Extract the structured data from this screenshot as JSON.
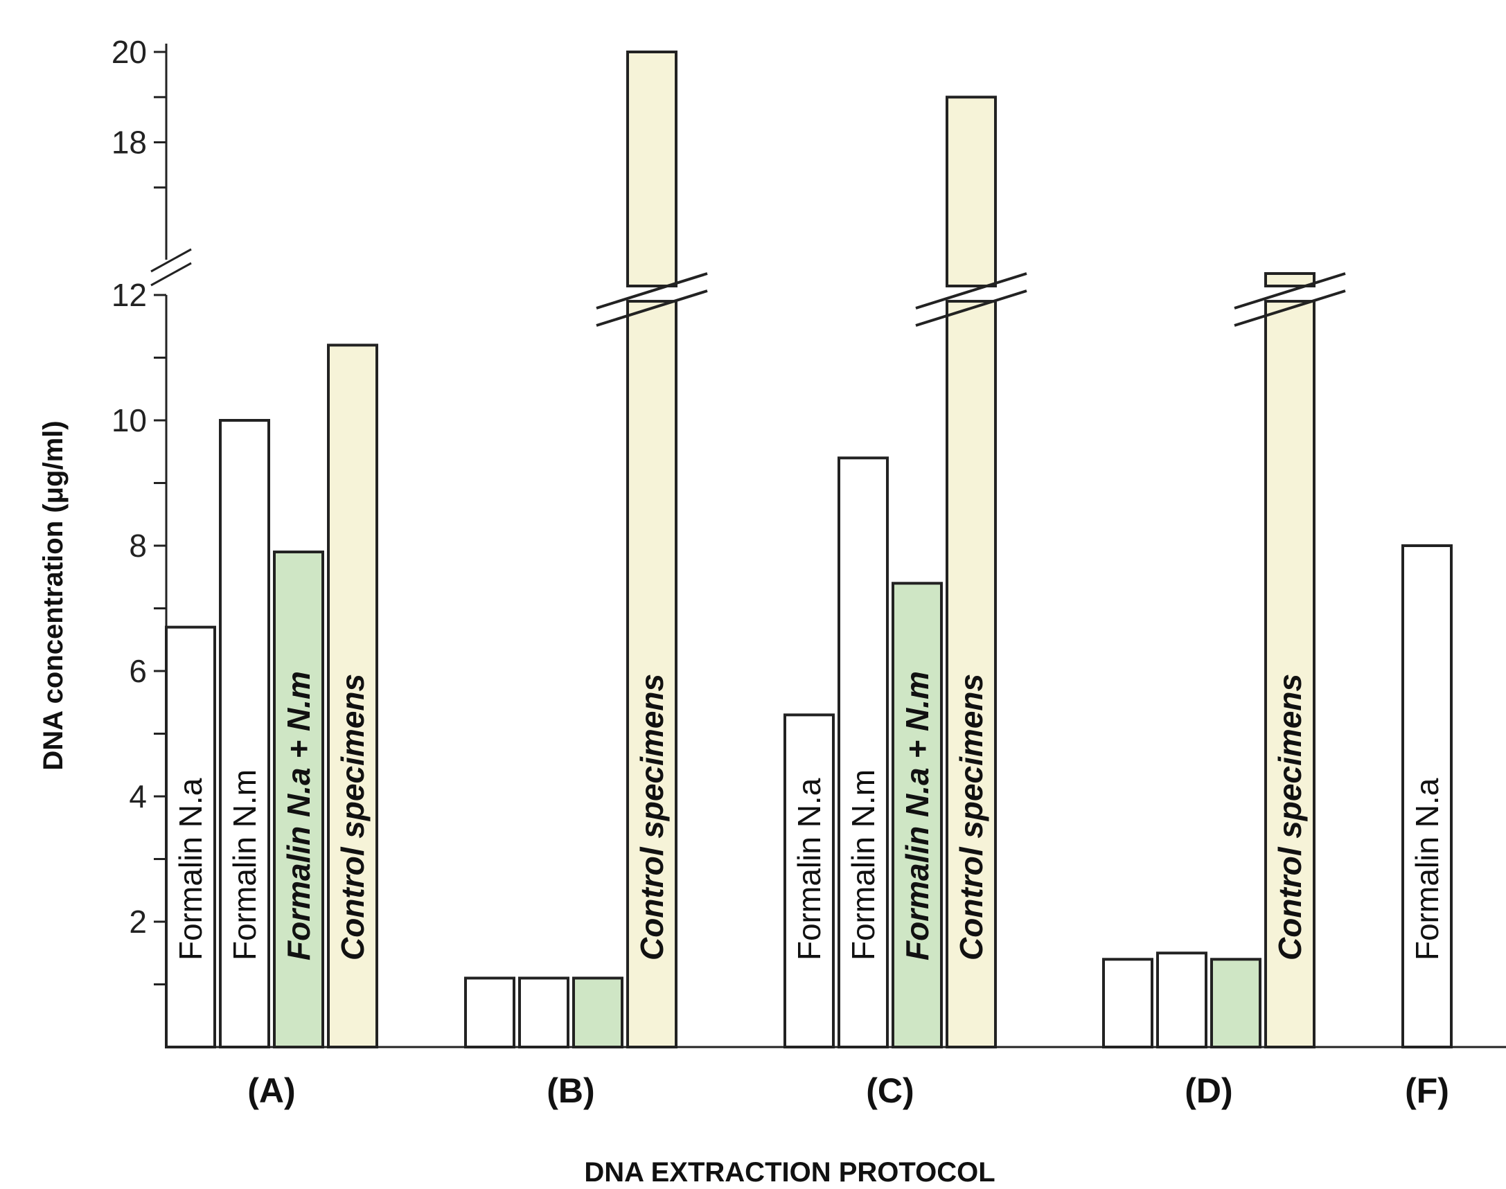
{
  "chart_data": {
    "type": "bar",
    "title": "",
    "xlabel": "DNA EXTRACTION PROTOCOL",
    "ylabel": "DNA concentration (μg/ml)",
    "ylim": [
      0,
      20
    ],
    "y_axis_break": [
      12,
      16
    ],
    "y_ticks": [
      "2",
      "4",
      "6",
      "8",
      "10",
      "12",
      "18",
      "20"
    ],
    "grid": false,
    "legend": "none",
    "colors": {
      "formalin": "#ffffff",
      "combined": "#cfe6c5",
      "control": "#f6f3d8",
      "edge": "#222222"
    },
    "groups": [
      {
        "label": "(A)",
        "bars": [
          {
            "kind": "formalin",
            "text": "Formalin N.a",
            "value": 6.7
          },
          {
            "kind": "formalin",
            "text": "Formalin N.m",
            "value": 10.0
          },
          {
            "kind": "combined",
            "text": "Formalin N.a + N.m",
            "value": 7.9
          },
          {
            "kind": "control",
            "text": "Control specimens",
            "value": 11.2
          }
        ]
      },
      {
        "label": "(B)",
        "bars": [
          {
            "kind": "formalin",
            "text": "",
            "value": 1.1
          },
          {
            "kind": "formalin",
            "text": "",
            "value": 1.1
          },
          {
            "kind": "combined",
            "text": "",
            "value": 1.1
          },
          {
            "kind": "control",
            "text": "Control specimens",
            "value": 20.0
          }
        ]
      },
      {
        "label": "(C)",
        "bars": [
          {
            "kind": "formalin",
            "text": "Formalin N.a",
            "value": 5.3
          },
          {
            "kind": "formalin",
            "text": "Formalin N.m",
            "value": 9.4
          },
          {
            "kind": "combined",
            "text": "Formalin N.a + N.m",
            "value": 7.4
          },
          {
            "kind": "control",
            "text": "Control specimens",
            "value": 19.0
          }
        ]
      },
      {
        "label": "(D)",
        "bars": [
          {
            "kind": "formalin",
            "text": "",
            "value": 1.4
          },
          {
            "kind": "formalin",
            "text": "",
            "value": 1.5
          },
          {
            "kind": "combined",
            "text": "",
            "value": 1.4
          },
          {
            "kind": "control",
            "text": "Control specimens",
            "value": 12.3
          }
        ]
      },
      {
        "label": "(F)",
        "bars": [
          {
            "kind": "formalin",
            "text": "Formalin N.a",
            "value": 8.0
          }
        ]
      }
    ]
  }
}
